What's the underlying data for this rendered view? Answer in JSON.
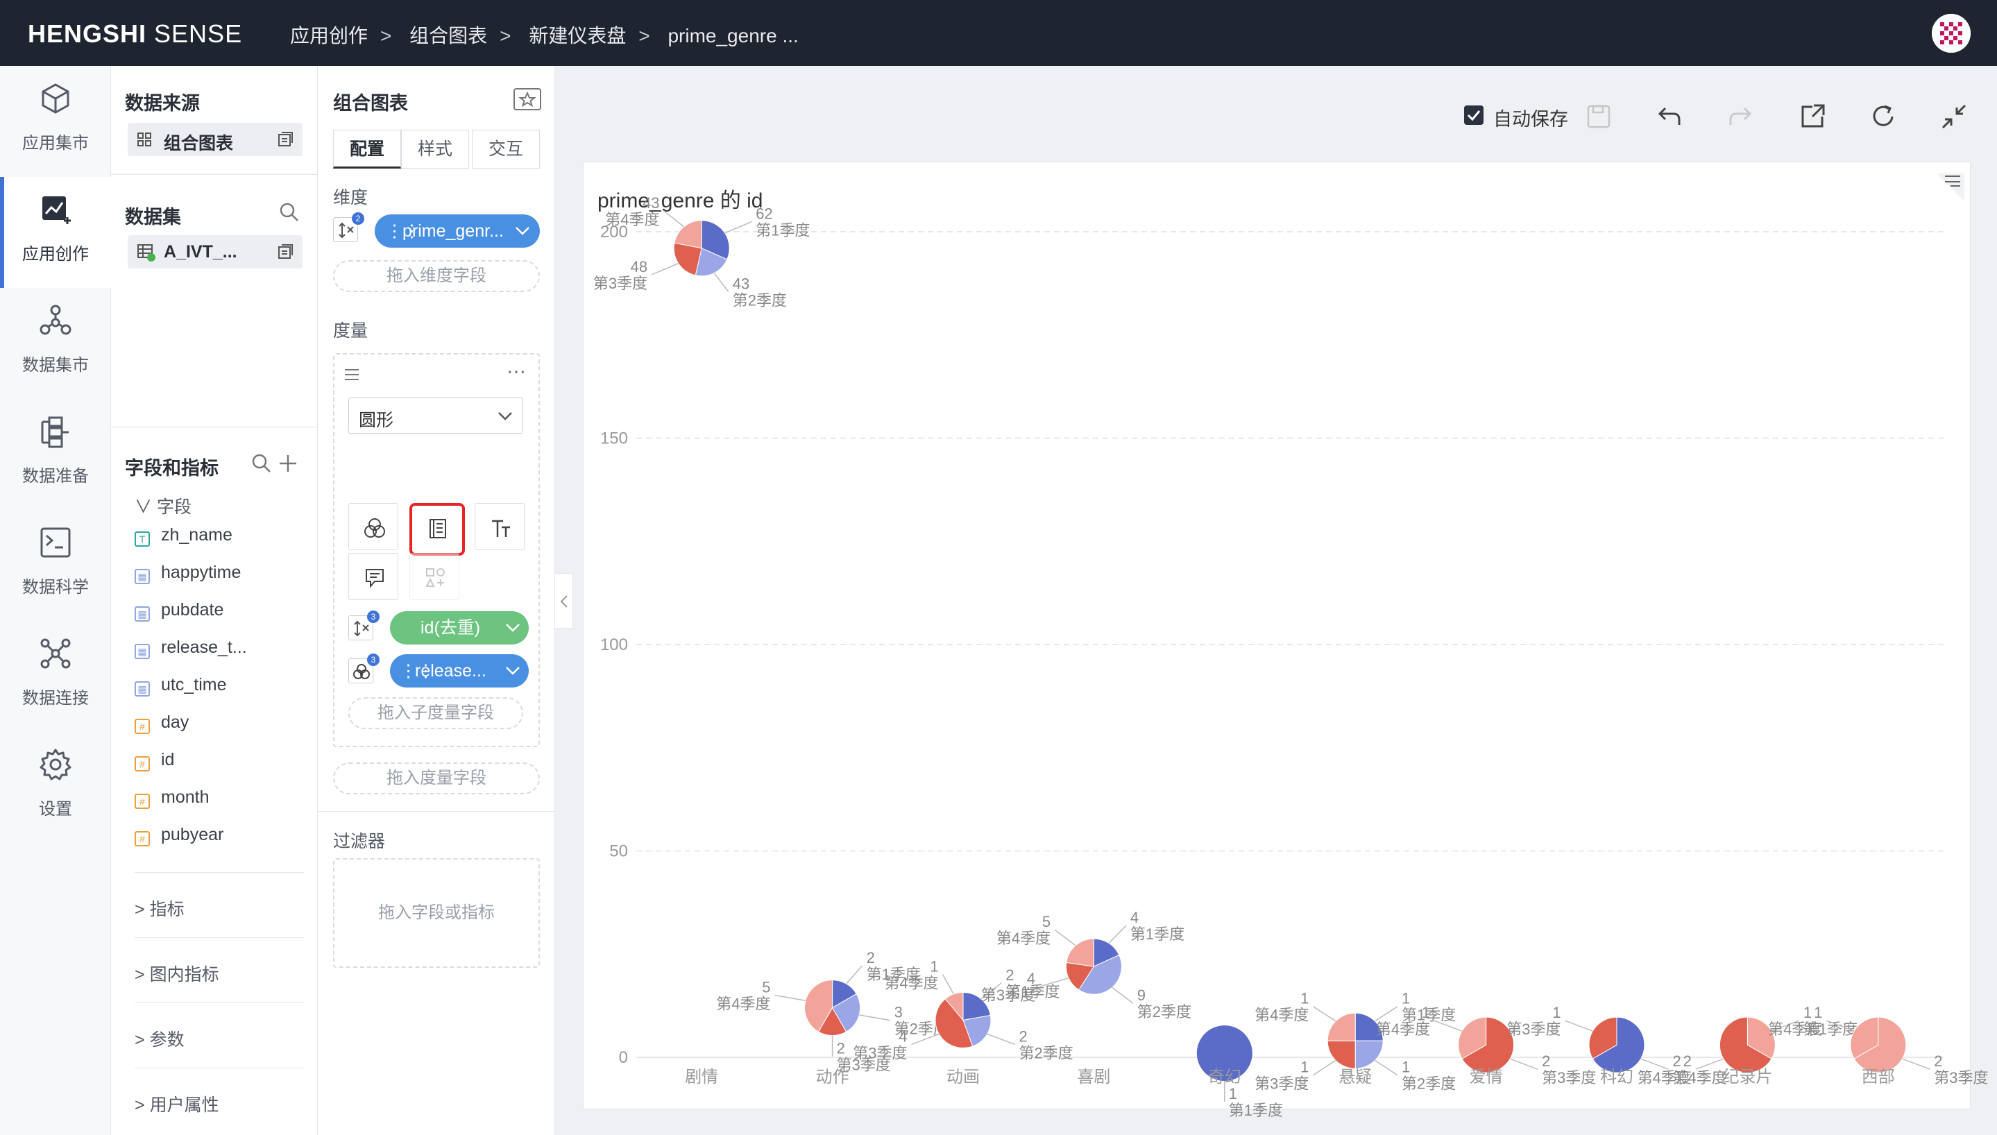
{
  "app": {
    "brand_bold": "HENGSHI",
    "brand_light": " SENSE"
  },
  "breadcrumb": [
    "应用创作",
    "组合图表",
    "新建仪表盘",
    "prime_genre ..."
  ],
  "breadcrumb_sep": ">",
  "nav": [
    {
      "label": "应用集市",
      "icon": "cube-icon"
    },
    {
      "label": "应用创作",
      "icon": "chart-edit-icon",
      "active": true
    },
    {
      "label": "数据集市",
      "icon": "network-icon"
    },
    {
      "label": "数据准备",
      "icon": "data-prep-icon"
    },
    {
      "label": "数据科学",
      "icon": "terminal-icon"
    },
    {
      "label": "数据连接",
      "icon": "connection-icon"
    },
    {
      "label": "设置",
      "icon": "gear-icon"
    }
  ],
  "panel1": {
    "source_title": "数据来源",
    "source_chip": "组合图表",
    "dataset_title": "数据集",
    "dataset_chip": "A_IVT_...",
    "fields_title": "字段和指标",
    "fields_group": "字段",
    "fields": [
      {
        "name": "zh_name",
        "type": "text"
      },
      {
        "name": "happytime",
        "type": "date"
      },
      {
        "name": "pubdate",
        "type": "date"
      },
      {
        "name": "release_t...",
        "type": "date"
      },
      {
        "name": "utc_time",
        "type": "date"
      },
      {
        "name": "day",
        "type": "number"
      },
      {
        "name": "id",
        "type": "number"
      },
      {
        "name": "month",
        "type": "number"
      },
      {
        "name": "pubyear",
        "type": "number"
      }
    ],
    "sections": [
      "指标",
      "图内指标",
      "参数",
      "用户属性"
    ]
  },
  "panel2": {
    "title": "组合图表",
    "tabs": [
      "配置",
      "样式",
      "交互"
    ],
    "dimension_label": "维度",
    "dimension_pill": "prime_genr...",
    "dimension_badge": "2",
    "drop_dimension": "拖入维度字段",
    "measure_label": "度量",
    "shape_select": "圆形",
    "measure_pill": "id(去重)",
    "measure_badge": "3",
    "sub_pill": "release...",
    "sub_badge": "3",
    "drop_sub": "拖入子度量字段",
    "drop_measure": "拖入度量字段",
    "filter_label": "过滤器",
    "drop_filter": "拖入字段或指标"
  },
  "toolbar": {
    "autosave_label": "自动保存",
    "autosave_checked": true
  },
  "colors": {
    "blue": "#5b6bc8",
    "red": "#e06050",
    "lightred": "#f2a39a",
    "lightblue": "#9aa6e6",
    "accent": "#3f73d8",
    "measure_green": "#6cc480"
  },
  "chart_data": {
    "type": "pie",
    "title": "prime_genre 的 id",
    "y_ticks": [
      "0",
      "50",
      "100",
      "150",
      "200"
    ],
    "ylim": [
      0,
      200
    ],
    "categories": [
      "剧情",
      "动作",
      "动画",
      "喜剧",
      "奇幻",
      "悬疑",
      "爱情",
      "科幻",
      "纪录片",
      "西部"
    ],
    "pies": [
      {
        "category": "剧情",
        "total": 196,
        "slices": [
          {
            "label": "第1季度",
            "value": 62,
            "color": "#5b6bc8"
          },
          {
            "label": "第2季度",
            "value": 43,
            "color": "#9aa6e6"
          },
          {
            "label": "第3季度",
            "value": 48,
            "color": "#e06050"
          },
          {
            "label": "第4季度",
            "value": 43,
            "color": "#f2a39a"
          }
        ]
      },
      {
        "category": "动作",
        "total": 12,
        "slices": [
          {
            "label": "第1季度",
            "value": 2,
            "color": "#5b6bc8"
          },
          {
            "label": "第2季度",
            "value": 3,
            "color": "#9aa6e6"
          },
          {
            "label": "第3季度",
            "value": 2,
            "color": "#e06050"
          },
          {
            "label": "第4季度",
            "value": 5,
            "color": "#f2a39a"
          }
        ]
      },
      {
        "category": "动画",
        "total": 9,
        "slices": [
          {
            "label": "第1季度",
            "value": 2,
            "color": "#5b6bc8"
          },
          {
            "label": "第2季度",
            "value": 2,
            "color": "#9aa6e6"
          },
          {
            "label": "第3季度",
            "value": 4,
            "color": "#e06050"
          },
          {
            "label": "第4季度",
            "value": 1,
            "color": "#f2a39a"
          }
        ]
      },
      {
        "category": "喜剧",
        "total": 22,
        "slices": [
          {
            "label": "第1季度",
            "value": 4,
            "color": "#5b6bc8"
          },
          {
            "label": "第2季度",
            "value": 9,
            "color": "#9aa6e6"
          },
          {
            "label": "第3季度",
            "value": 4,
            "color": "#e06050"
          },
          {
            "label": "第4季度",
            "value": 5,
            "color": "#f2a39a"
          }
        ]
      },
      {
        "category": "奇幻",
        "total": 1,
        "slices": [
          {
            "label": "第1季度",
            "value": 1,
            "color": "#5b6bc8"
          }
        ]
      },
      {
        "category": "悬疑",
        "total": 4,
        "slices": [
          {
            "label": "第1季度",
            "value": 1,
            "color": "#5b6bc8"
          },
          {
            "label": "第2季度",
            "value": 1,
            "color": "#9aa6e6"
          },
          {
            "label": "第3季度",
            "value": 1,
            "color": "#e06050"
          },
          {
            "label": "第4季度",
            "value": 1,
            "color": "#f2a39a"
          }
        ]
      },
      {
        "category": "爱情",
        "total": 3,
        "slices": [
          {
            "label": "第3季度",
            "value": 2,
            "color": "#e06050"
          },
          {
            "label": "第4季度",
            "value": 1,
            "color": "#f2a39a"
          }
        ]
      },
      {
        "category": "科幻",
        "total": 3,
        "slices": [
          {
            "label": "第4季度",
            "value": 2,
            "color": "#5b6bc8"
          },
          {
            "label": "第3季度",
            "value": 1,
            "color": "#e06050"
          }
        ]
      },
      {
        "category": "纪录片",
        "total": 3,
        "slices": [
          {
            "label": "第1季度",
            "value": 1,
            "color": "#f2a39a"
          },
          {
            "label": "第4季度",
            "value": 2,
            "color": "#e06050"
          }
        ]
      },
      {
        "category": "西部",
        "total": 3,
        "slices": [
          {
            "label": "第3季度",
            "value": 2,
            "color": "#f2a39a"
          },
          {
            "label": "第4季度",
            "value": 1,
            "color": "#f2a39a"
          }
        ]
      }
    ]
  }
}
